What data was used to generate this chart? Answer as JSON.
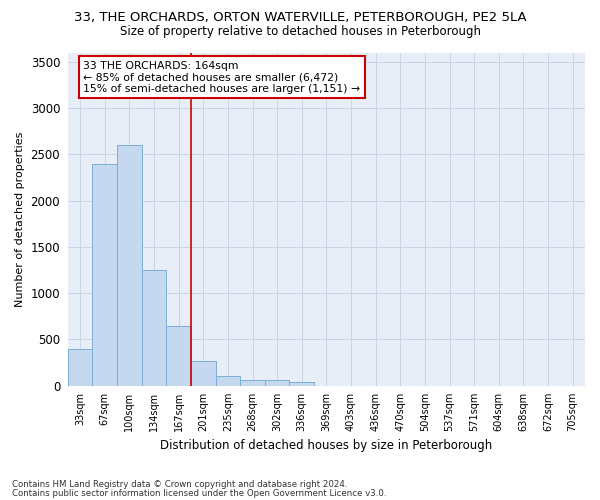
{
  "title_line1": "33, THE ORCHARDS, ORTON WATERVILLE, PETERBOROUGH, PE2 5LA",
  "title_line2": "Size of property relative to detached houses in Peterborough",
  "xlabel": "Distribution of detached houses by size in Peterborough",
  "ylabel": "Number of detached properties",
  "categories": [
    "33sqm",
    "67sqm",
    "100sqm",
    "134sqm",
    "167sqm",
    "201sqm",
    "235sqm",
    "268sqm",
    "302sqm",
    "336sqm",
    "369sqm",
    "403sqm",
    "436sqm",
    "470sqm",
    "504sqm",
    "537sqm",
    "571sqm",
    "604sqm",
    "638sqm",
    "672sqm",
    "705sqm"
  ],
  "values": [
    390,
    2400,
    2600,
    1250,
    640,
    260,
    100,
    60,
    55,
    35,
    0,
    0,
    0,
    0,
    0,
    0,
    0,
    0,
    0,
    0,
    0
  ],
  "bar_color": "#c5d8f0",
  "bar_edge_color": "#7aafd4",
  "ylim": [
    0,
    3600
  ],
  "yticks": [
    0,
    500,
    1000,
    1500,
    2000,
    2500,
    3000,
    3500
  ],
  "property_line_x": 4.5,
  "annotation_line1": "33 THE ORCHARDS: 164sqm",
  "annotation_line2": "← 85% of detached houses are smaller (6,472)",
  "annotation_line3": "15% of semi-detached houses are larger (1,151) →",
  "annotation_box_facecolor": "#ffffff",
  "annotation_box_edgecolor": "#cc0000",
  "vline_color": "#cc0000",
  "bg_color": "#ffffff",
  "plot_bg_color": "#e8eef8",
  "grid_color": "#c8d4e8",
  "footer_line1": "Contains HM Land Registry data © Crown copyright and database right 2024.",
  "footer_line2": "Contains public sector information licensed under the Open Government Licence v3.0."
}
